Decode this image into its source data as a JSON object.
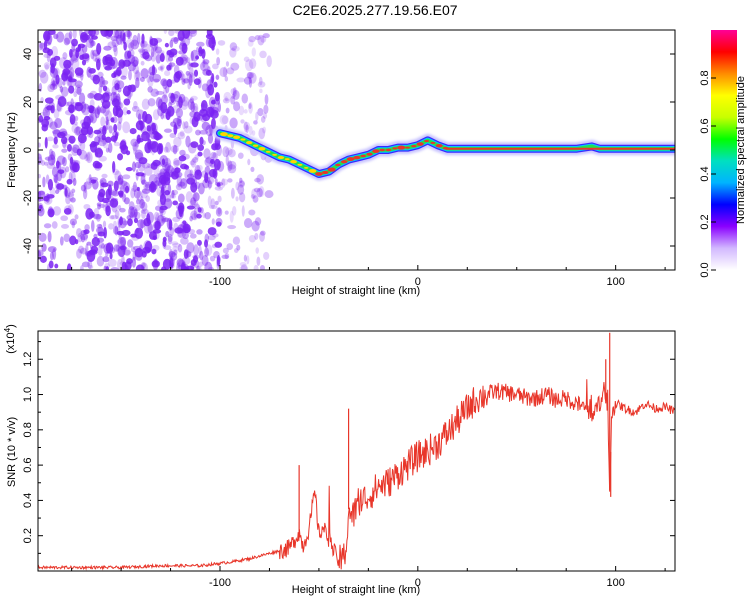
{
  "title": "C2E6.2025.277.19.56.E07",
  "colors": {
    "background": "#ffffff",
    "axis": "#000000",
    "snr_line": "#e8362a",
    "trace_core": "#e8362a",
    "trace_mid": "#24e04a",
    "trace_outer": "#3a28ff",
    "noise_blobs": "#7a22f2"
  },
  "chart_data": [
    {
      "type": "heatmap",
      "name": "spectrogram",
      "title": "C2E6.2025.277.19.56.E07",
      "xlabel": "Height of straight line (km)",
      "ylabel": "Frequency (Hz)",
      "xlim": [
        -192,
        130
      ],
      "ylim": [
        -50,
        50
      ],
      "xticks": [
        -100,
        0,
        100
      ],
      "xtick_labels": [
        "-100",
        "0",
        "100"
      ],
      "yticks": [
        40,
        20,
        0,
        -20,
        -40
      ],
      "ytick_labels": [
        "40",
        "20",
        "0",
        "-20",
        "-40"
      ],
      "noise_region_x": [
        -192,
        -75
      ],
      "trace": {
        "x": [
          -100,
          -95,
          -90,
          -85,
          -80,
          -75,
          -70,
          -65,
          -60,
          -55,
          -50,
          -45,
          -40,
          -35,
          -30,
          -25,
          -20,
          -15,
          -10,
          -5,
          0,
          5,
          10,
          15,
          20,
          40,
          60,
          80,
          88,
          92,
          100,
          120,
          130
        ],
        "y": [
          7,
          6,
          5,
          3,
          1,
          -1,
          -3,
          -4,
          -6,
          -8,
          -10,
          -9,
          -6,
          -4,
          -3,
          -2,
          0,
          0,
          1,
          1,
          2,
          4,
          2,
          0.5,
          0.5,
          0.5,
          0.5,
          0.5,
          1.5,
          0.5,
          0.5,
          0.5,
          0.5
        ]
      },
      "colorbar": {
        "label": "Normalized spectral amplitude",
        "range": [
          0,
          1
        ],
        "ticks": [
          0.0,
          0.2,
          0.4,
          0.6,
          0.8
        ],
        "tick_labels": [
          "0.0",
          "0.2",
          "0.4",
          "0.6",
          "0.8"
        ],
        "colors": [
          "#ffffff",
          "#d2b8ff",
          "#8a00ff",
          "#0000ff",
          "#00b4ff",
          "#00e0c0",
          "#00ff00",
          "#c8ff00",
          "#ffff00",
          "#ff8c00",
          "#ff0000",
          "#ff0096"
        ]
      }
    },
    {
      "type": "line",
      "name": "snr",
      "xlabel": "Height of straight line (km)",
      "ylabel": "SNR (10 * v/v)",
      "scale_label": "(x10",
      "scale_exponent": "4",
      "xlim": [
        -192,
        130
      ],
      "ylim": [
        0.0,
        1.36
      ],
      "xticks": [
        -100,
        0,
        100
      ],
      "xtick_labels": [
        "-100",
        "0",
        "100"
      ],
      "yticks": [
        0.2,
        0.4,
        0.6,
        0.8,
        1.0,
        1.2
      ],
      "ytick_labels": [
        "0.2",
        "0.4",
        "0.6",
        "0.8",
        "1.0",
        "1.2"
      ],
      "series": [
        {
          "name": "SNR",
          "x": [
            -192,
            -170,
            -150,
            -130,
            -110,
            -95,
            -85,
            -75,
            -68,
            -65,
            -62,
            -60,
            -58,
            -55,
            -52,
            -50,
            -48,
            -45,
            -42,
            -40,
            -38,
            -36,
            -35,
            -33,
            -30,
            -25,
            -20,
            -15,
            -10,
            -5,
            0,
            5,
            10,
            15,
            20,
            25,
            30,
            35,
            40,
            45,
            50,
            55,
            60,
            65,
            70,
            75,
            80,
            85,
            88,
            92,
            94,
            96,
            97,
            98,
            100,
            105,
            110,
            115,
            120,
            125,
            130
          ],
          "y": [
            0.02,
            0.02,
            0.02,
            0.03,
            0.03,
            0.05,
            0.07,
            0.1,
            0.12,
            0.13,
            0.18,
            0.22,
            0.14,
            0.24,
            0.45,
            0.2,
            0.25,
            0.18,
            0.1,
            0.06,
            0.06,
            0.15,
            0.35,
            0.3,
            0.4,
            0.42,
            0.48,
            0.5,
            0.55,
            0.6,
            0.65,
            0.68,
            0.72,
            0.78,
            0.85,
            0.92,
            0.98,
            1.0,
            1.02,
            1.01,
            1.0,
            0.98,
            0.98,
            1.0,
            0.97,
            0.98,
            0.95,
            0.92,
            0.88,
            0.95,
            1.05,
            0.85,
            0.45,
            0.9,
            0.95,
            0.92,
            0.9,
            0.95,
            0.92,
            0.93,
            0.9
          ]
        }
      ]
    }
  ]
}
